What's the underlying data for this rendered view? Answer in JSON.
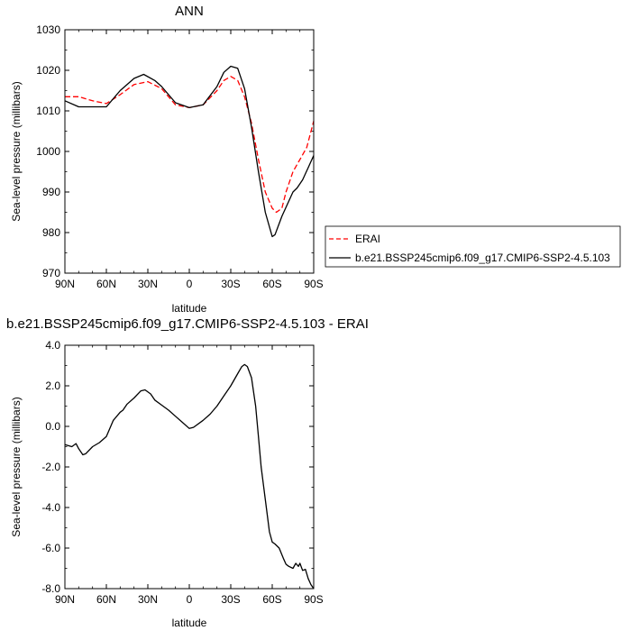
{
  "chart_data": [
    {
      "type": "line",
      "title": "ANN",
      "xlabel": "latitude",
      "ylabel": "Sea-level pressure (millibars)",
      "xlim": [
        -90,
        90
      ],
      "ylim": [
        970,
        1030
      ],
      "x_ticks": [
        -90,
        -60,
        -30,
        0,
        30,
        60,
        90
      ],
      "x_tick_labels": [
        "90N",
        "60N",
        "30N",
        "0",
        "30S",
        "60S",
        "90S"
      ],
      "y_ticks": [
        970,
        980,
        990,
        1000,
        1010,
        1020,
        1030
      ],
      "y_tick_labels": [
        "970",
        "980",
        "990",
        "1000",
        "1010",
        "1020",
        "1030"
      ],
      "legend": {
        "placement": "right"
      },
      "series": [
        {
          "name": "ERAI",
          "color": "#ff0000",
          "dash": true,
          "points": [
            [
              -90,
              1013.5
            ],
            [
              -80,
              1013.5
            ],
            [
              -70,
              1012.5
            ],
            [
              -60,
              1011.8
            ],
            [
              -50,
              1014
            ],
            [
              -40,
              1016.5
            ],
            [
              -30,
              1017.2
            ],
            [
              -20,
              1015.5
            ],
            [
              -10,
              1011.5
            ],
            [
              0,
              1010.8
            ],
            [
              10,
              1011.5
            ],
            [
              20,
              1015
            ],
            [
              25,
              1017.5
            ],
            [
              30,
              1018.5
            ],
            [
              35,
              1017.5
            ],
            [
              40,
              1013.5
            ],
            [
              45,
              1007
            ],
            [
              50,
              998
            ],
            [
              55,
              990
            ],
            [
              60,
              986
            ],
            [
              63,
              985
            ],
            [
              67,
              986
            ],
            [
              70,
              990
            ],
            [
              75,
              995
            ],
            [
              80,
              998
            ],
            [
              85,
              1001
            ],
            [
              90,
              1007.5
            ]
          ]
        },
        {
          "name": "b.e21.BSSP245cmip6.f09_g17.CMIP6-SSP2-4.5.103",
          "color": "#000000",
          "dash": false,
          "points": [
            [
              -90,
              1012.5
            ],
            [
              -80,
              1011
            ],
            [
              -70,
              1011
            ],
            [
              -60,
              1011
            ],
            [
              -50,
              1015
            ],
            [
              -40,
              1018
            ],
            [
              -33,
              1019
            ],
            [
              -25,
              1017.5
            ],
            [
              -20,
              1016
            ],
            [
              -10,
              1012
            ],
            [
              0,
              1010.8
            ],
            [
              10,
              1011.5
            ],
            [
              20,
              1016
            ],
            [
              25,
              1019.5
            ],
            [
              30,
              1021
            ],
            [
              35,
              1020.5
            ],
            [
              40,
              1015.5
            ],
            [
              45,
              1006
            ],
            [
              50,
              995
            ],
            [
              55,
              985
            ],
            [
              60,
              979
            ],
            [
              62,
              979.5
            ],
            [
              67,
              984
            ],
            [
              75,
              990
            ],
            [
              78,
              991
            ],
            [
              82,
              993
            ],
            [
              86,
              996
            ],
            [
              90,
              999
            ]
          ]
        }
      ]
    },
    {
      "type": "line",
      "title": "b.e21.BSSP245cmip6.f09_g17.CMIP6-SSP2-4.5.103 - ERAI",
      "xlabel": "latitude",
      "ylabel": "Sea-level pressure (millibars)",
      "xlim": [
        -90,
        90
      ],
      "ylim": [
        -8,
        4
      ],
      "x_ticks": [
        -90,
        -60,
        -30,
        0,
        30,
        60,
        90
      ],
      "x_tick_labels": [
        "90N",
        "60N",
        "30N",
        "0",
        "30S",
        "60S",
        "90S"
      ],
      "y_ticks": [
        -8,
        -6,
        -4,
        -2,
        0,
        2,
        4
      ],
      "y_tick_labels": [
        "-8.0",
        "-6.0",
        "-4.0",
        "-2.0",
        "0.0",
        "2.0",
        "4.0"
      ],
      "series": [
        {
          "color": "#000000",
          "dash": false,
          "points": [
            [
              -90,
              -0.9
            ],
            [
              -85,
              -1.0
            ],
            [
              -82,
              -0.85
            ],
            [
              -80,
              -1.1
            ],
            [
              -77,
              -1.4
            ],
            [
              -75,
              -1.35
            ],
            [
              -70,
              -1.0
            ],
            [
              -65,
              -0.8
            ],
            [
              -60,
              -0.5
            ],
            [
              -55,
              0.3
            ],
            [
              -50,
              0.7
            ],
            [
              -48,
              0.8
            ],
            [
              -45,
              1.1
            ],
            [
              -40,
              1.4
            ],
            [
              -35,
              1.75
            ],
            [
              -32,
              1.8
            ],
            [
              -28,
              1.6
            ],
            [
              -25,
              1.3
            ],
            [
              -20,
              1.05
            ],
            [
              -15,
              0.8
            ],
            [
              -10,
              0.5
            ],
            [
              -5,
              0.2
            ],
            [
              0,
              -0.1
            ],
            [
              3,
              -0.05
            ],
            [
              10,
              0.3
            ],
            [
              15,
              0.6
            ],
            [
              20,
              1.0
            ],
            [
              25,
              1.5
            ],
            [
              30,
              2.0
            ],
            [
              35,
              2.6
            ],
            [
              38,
              2.95
            ],
            [
              40,
              3.05
            ],
            [
              42,
              2.95
            ],
            [
              45,
              2.4
            ],
            [
              48,
              1.0
            ],
            [
              50,
              -0.5
            ],
            [
              52,
              -2.0
            ],
            [
              55,
              -3.6
            ],
            [
              58,
              -5.2
            ],
            [
              60,
              -5.7
            ],
            [
              62,
              -5.8
            ],
            [
              65,
              -6.0
            ],
            [
              68,
              -6.5
            ],
            [
              70,
              -6.8
            ],
            [
              72,
              -6.9
            ],
            [
              75,
              -7.0
            ],
            [
              77,
              -6.75
            ],
            [
              79,
              -6.9
            ],
            [
              80,
              -6.75
            ],
            [
              82,
              -7.1
            ],
            [
              84,
              -7.05
            ],
            [
              86,
              -7.5
            ],
            [
              88,
              -7.8
            ],
            [
              90,
              -8.0
            ]
          ]
        }
      ]
    }
  ]
}
